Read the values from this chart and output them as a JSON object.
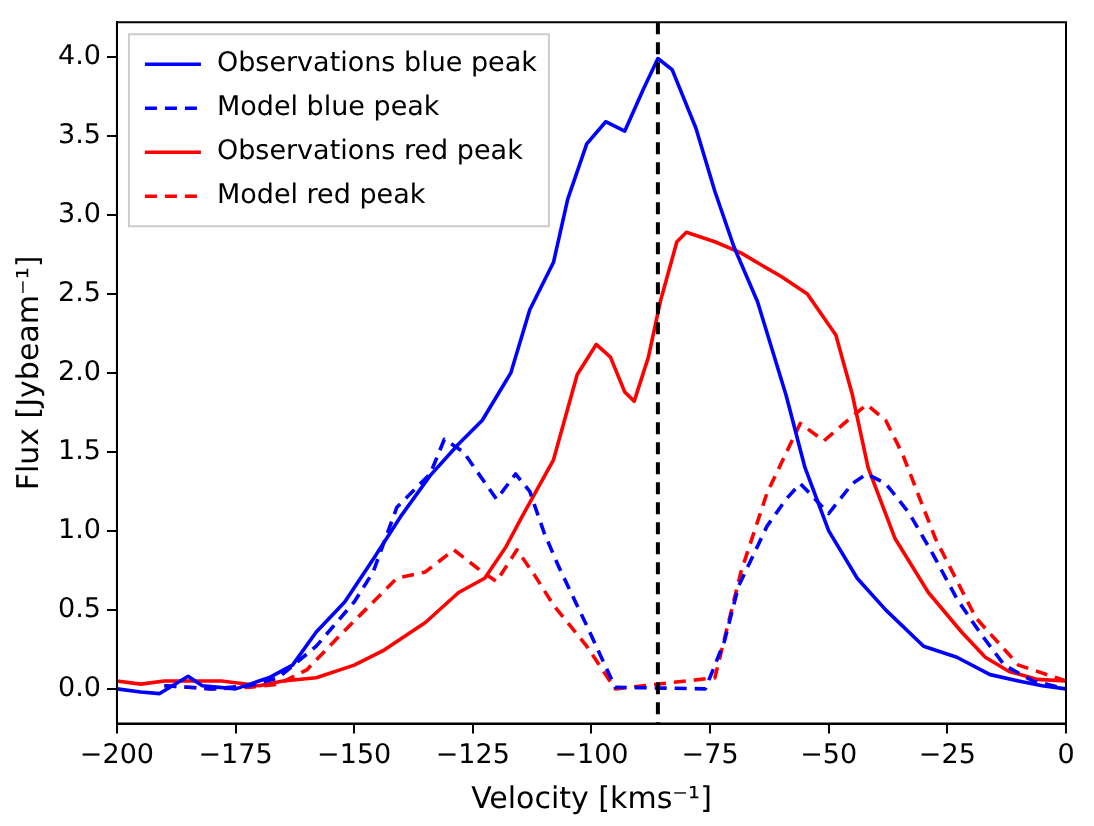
{
  "chart_data": {
    "type": "line",
    "xlabel": "Velocity [kms⁻¹]",
    "ylabel": "Flux [Jybeam⁻¹]",
    "xlim": [
      -200,
      0
    ],
    "ylim": [
      -0.22,
      4.22
    ],
    "xticks": [
      {
        "value": -200,
        "label": "−200"
      },
      {
        "value": -175,
        "label": "−175"
      },
      {
        "value": -150,
        "label": "−150"
      },
      {
        "value": -125,
        "label": "−125"
      },
      {
        "value": -100,
        "label": "−100"
      },
      {
        "value": -75,
        "label": "−75"
      },
      {
        "value": -50,
        "label": "−50"
      },
      {
        "value": -25,
        "label": "−25"
      },
      {
        "value": 0,
        "label": "0"
      }
    ],
    "yticks": [
      {
        "value": 0,
        "label": "0.0"
      },
      {
        "value": 0.5,
        "label": "0.5"
      },
      {
        "value": 1,
        "label": "1.0"
      },
      {
        "value": 1.5,
        "label": "1.5"
      },
      {
        "value": 2,
        "label": "2.0"
      },
      {
        "value": 2.5,
        "label": "2.5"
      },
      {
        "value": 3,
        "label": "3.0"
      },
      {
        "value": 3.5,
        "label": "3.5"
      },
      {
        "value": 4,
        "label": "4.0"
      }
    ],
    "grid": false,
    "legend": "top left",
    "marker": "none",
    "ref_lines": [
      {
        "axis": "x",
        "value": -86,
        "color": "#000000",
        "line_style": "dashed"
      }
    ],
    "series": [
      {
        "name": "Observations blue peak",
        "color": "#0000ff",
        "line_style": "solid",
        "x": [
          -200,
          -195,
          -191,
          -185,
          -182,
          -175,
          -168,
          -163,
          -158,
          -152,
          -146,
          -140,
          -134,
          -128,
          -123,
          -117,
          -113,
          -108,
          -105,
          -101,
          -97,
          -93,
          -89,
          -86,
          -83,
          -78,
          -74,
          -70,
          -65,
          -59,
          -55,
          -50,
          -44,
          -38,
          -30,
          -23,
          -16,
          -10,
          -5,
          0
        ],
        "values": [
          0,
          -0.02,
          -0.03,
          0.08,
          0.02,
          0,
          0.07,
          0.15,
          0.36,
          0.55,
          0.82,
          1.1,
          1.35,
          1.55,
          1.7,
          2,
          2.4,
          2.7,
          3.1,
          3.45,
          3.59,
          3.53,
          3.8,
          3.99,
          3.92,
          3.55,
          3.15,
          2.8,
          2.45,
          1.86,
          1.4,
          1,
          0.7,
          0.5,
          0.27,
          0.2,
          0.09,
          0.05,
          0.02,
          0
        ]
      },
      {
        "name": "Model blue peak",
        "color": "#0000ff",
        "line_style": "dashed",
        "x": [
          -190,
          -180,
          -172,
          -166,
          -158,
          -150,
          -146,
          -141,
          -134,
          -131,
          -127,
          -120,
          -116,
          -113,
          -110,
          -107,
          -101,
          -95,
          -76,
          -72,
          -69,
          -63,
          -59,
          -56,
          -50,
          -45,
          -42,
          -38,
          -33,
          -28,
          -23,
          -18,
          -13,
          -7,
          0
        ],
        "values": [
          0.02,
          0,
          0.02,
          0.07,
          0.27,
          0.55,
          0.74,
          1.15,
          1.36,
          1.58,
          1.5,
          1.2,
          1.36,
          1.25,
          0.99,
          0.78,
          0.4,
          0.01,
          0,
          0.3,
          0.65,
          1.03,
          1.2,
          1.3,
          1.11,
          1.3,
          1.36,
          1.3,
          1.11,
          0.85,
          0.57,
          0.35,
          0.15,
          0.05,
          0
        ]
      },
      {
        "name": "Observations red peak",
        "color": "#ff0000",
        "line_style": "solid",
        "x": [
          -200,
          -195,
          -190,
          -185,
          -178,
          -170,
          -165,
          -158,
          -150,
          -144,
          -135,
          -128,
          -122.5,
          -118,
          -115,
          -108,
          -103,
          -99,
          -96,
          -93,
          -91,
          -88,
          -85.5,
          -82,
          -80,
          -74,
          -68.5,
          -64,
          -60,
          -54.5,
          -48.5,
          -45,
          -41.7,
          -36,
          -29,
          -22,
          -17,
          -12,
          -6,
          0
        ],
        "values": [
          0.05,
          0.03,
          0.05,
          0.05,
          0.05,
          0.02,
          0.05,
          0.07,
          0.15,
          0.24,
          0.42,
          0.61,
          0.7,
          0.9,
          1.07,
          1.45,
          1.99,
          2.18,
          2.1,
          1.88,
          1.82,
          2.1,
          2.45,
          2.83,
          2.89,
          2.83,
          2.76,
          2.68,
          2.61,
          2.5,
          2.24,
          1.86,
          1.4,
          0.95,
          0.61,
          0.36,
          0.2,
          0.11,
          0.06,
          0.05
        ]
      },
      {
        "name": "Model red peak",
        "color": "#ff0000",
        "line_style": "dashed",
        "x": [
          -190,
          -180,
          -172,
          -166,
          -160,
          -153.6,
          -147,
          -141,
          -135,
          -129,
          -123,
          -120,
          -115.7,
          -112,
          -108,
          -101,
          -95,
          -74,
          -68.5,
          -63,
          -56,
          -51,
          -46,
          -42,
          -38,
          -34.5,
          -27.5,
          -19,
          -10,
          0
        ],
        "values": [
          0.02,
          0,
          0.01,
          0.03,
          0.12,
          0.32,
          0.52,
          0.7,
          0.74,
          0.88,
          0.74,
          0.68,
          0.88,
          0.72,
          0.53,
          0.27,
          0,
          0.07,
          0.74,
          1.24,
          1.68,
          1.57,
          1.7,
          1.8,
          1.7,
          1.49,
          0.95,
          0.45,
          0.15,
          0.05
        ]
      }
    ]
  }
}
